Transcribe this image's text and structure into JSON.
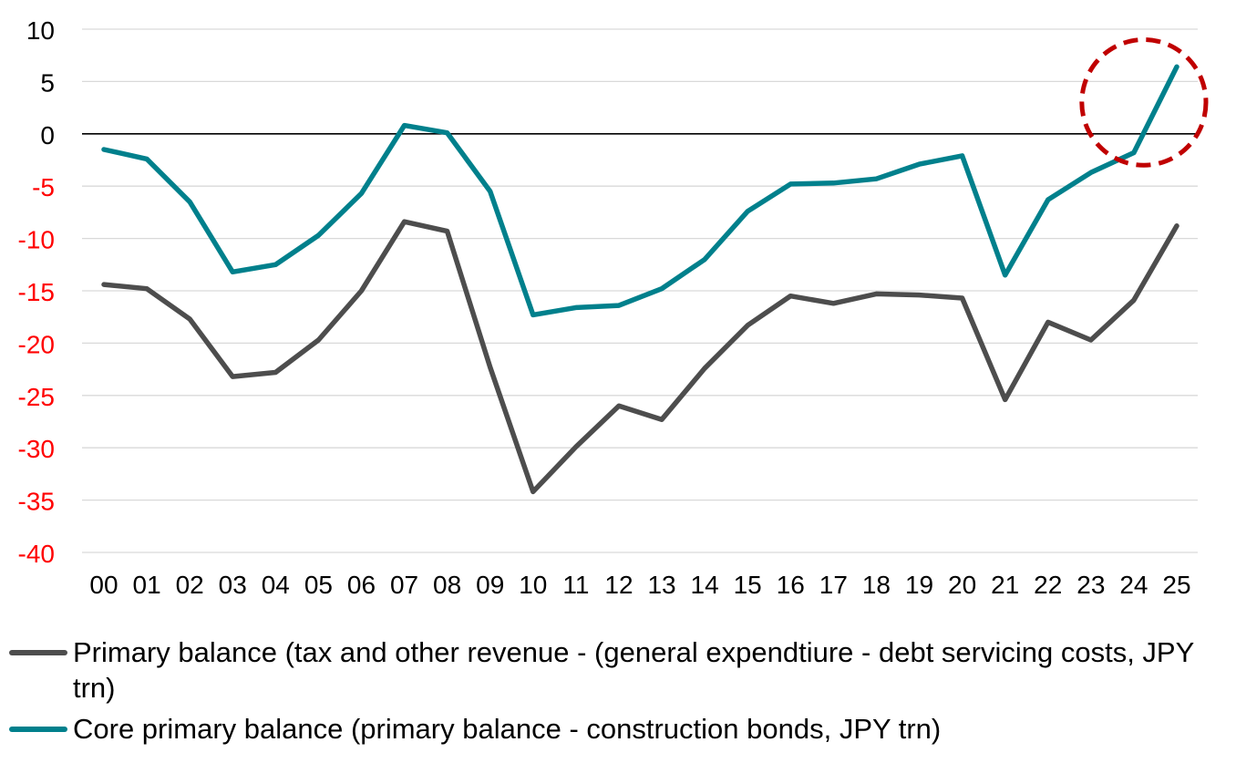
{
  "chart_data": {
    "type": "line",
    "categories": [
      "00",
      "01",
      "02",
      "03",
      "04",
      "05",
      "06",
      "07",
      "08",
      "09",
      "10",
      "11",
      "12",
      "13",
      "14",
      "15",
      "16",
      "17",
      "18",
      "19",
      "20",
      "21",
      "22",
      "23",
      "24",
      "25"
    ],
    "series": [
      {
        "name": "Primary balance (tax and other revenue - (general expendtiure - debt servicing costs, JPY trn)",
        "color": "#4d4d4d",
        "values": [
          -14.4,
          -14.8,
          -17.7,
          -23.2,
          -22.8,
          -19.7,
          -15.0,
          -8.4,
          -9.3,
          -22.3,
          -34.2,
          -29.9,
          -26.0,
          -27.3,
          -22.4,
          -18.3,
          -15.5,
          -16.2,
          -15.3,
          -15.4,
          -15.7,
          -25.4,
          -18.0,
          -19.7,
          -15.9,
          -8.8
        ]
      },
      {
        "name": "Core primary balance (primary balance - construction bonds, JPY trn)",
        "color": "#00808c",
        "values": [
          -1.5,
          -2.4,
          -6.5,
          -13.2,
          -12.5,
          -9.7,
          -5.7,
          0.8,
          0.1,
          -5.5,
          -17.3,
          -16.6,
          -16.4,
          -14.8,
          -12.0,
          -7.4,
          -4.8,
          -4.7,
          -4.3,
          -2.9,
          -2.1,
          -13.5,
          -6.3,
          -3.7,
          -1.8,
          6.4
        ]
      }
    ],
    "y_ticks": [
      "10",
      "5",
      "0",
      "-5",
      "-10",
      "-15",
      "-20",
      "-25",
      "-30",
      "-35",
      "-40"
    ],
    "y_tick_values": [
      10,
      5,
      0,
      -5,
      -10,
      -15,
      -20,
      -25,
      -30,
      -35,
      -40
    ],
    "ylim": [
      -40,
      10
    ],
    "positive_tick_color": "#000000",
    "negative_tick_color": "#ff0000",
    "zero_line_color": "#000000",
    "grid": true,
    "grid_color": "#d9d9d9",
    "legend_position": "bottom",
    "annotation": {
      "type": "dashed-ellipse",
      "color": "#c00000",
      "x_from": "23",
      "x_to": "25",
      "y_from": -3,
      "y_to": 9
    }
  }
}
